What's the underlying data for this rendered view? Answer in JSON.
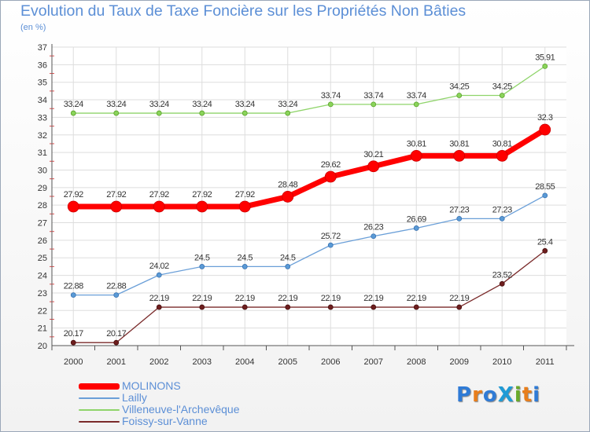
{
  "title": "Evolution du Taux de Taxe Foncière sur les Propriétés Non Bâties",
  "unit_label": "(en %)",
  "logo": {
    "text": "ProXiti",
    "colors": [
      "#2f7bd6",
      "#e87e1c",
      "#2f7bd6",
      "#1f9bd6",
      "#6aaa2a",
      "#e87e1c",
      "#2f7bd6"
    ]
  },
  "chart_data": {
    "type": "line",
    "title": "Evolution du Taux de Taxe Foncière sur les Propriétés Non Bâties",
    "ylabel": "(en %)",
    "x": [
      "2000",
      "2001",
      "2002",
      "2003",
      "2004",
      "2005",
      "2006",
      "2007",
      "2008",
      "2009",
      "2010",
      "2011"
    ],
    "ylim": [
      20,
      37
    ],
    "yticks": [
      "20",
      "21",
      "22",
      "23",
      "24",
      "25",
      "26",
      "27",
      "28",
      "29",
      "30",
      "31",
      "32",
      "33",
      "34",
      "35",
      "36",
      "37"
    ],
    "grid": true,
    "legend_position": "bottom-left",
    "series": [
      {
        "name": "MOLINONS",
        "color": "#ff0000",
        "values": [
          27.92,
          27.92,
          27.92,
          27.92,
          27.92,
          28.48,
          29.62,
          30.21,
          30.81,
          30.81,
          30.81,
          32.3
        ],
        "labels": [
          "27.92",
          "27.92",
          "27.92",
          "27.92",
          "27.92",
          "28.48",
          "29.62",
          "30.21",
          "30.81",
          "30.81",
          "30.81",
          "32.3"
        ]
      },
      {
        "name": "Lailly",
        "color": "#6a9fd8",
        "values": [
          22.88,
          22.88,
          24.02,
          24.5,
          24.5,
          24.5,
          25.72,
          26.23,
          26.69,
          27.23,
          27.23,
          28.55
        ],
        "labels": [
          "22.88",
          "22.88",
          "24.02",
          "24.5",
          "24.5",
          "24.5",
          "25.72",
          "26.23",
          "26.69",
          "27.23",
          "27.23",
          "28.55"
        ]
      },
      {
        "name": "Villeneuve-l'Archevêque",
        "color": "#8fd46a",
        "values": [
          33.24,
          33.24,
          33.24,
          33.24,
          33.24,
          33.24,
          33.74,
          33.74,
          33.74,
          34.25,
          34.25,
          35.91
        ],
        "labels": [
          "33.24",
          "33.24",
          "33.24",
          "33.24",
          "33.24",
          "33.24",
          "33.74",
          "33.74",
          "33.74",
          "34.25",
          "34.25",
          "35.91"
        ]
      },
      {
        "name": "Foissy-sur-Vanne",
        "color": "#7a2a2a",
        "values": [
          20.17,
          20.17,
          22.19,
          22.19,
          22.19,
          22.19,
          22.19,
          22.19,
          22.19,
          22.19,
          23.52,
          25.4
        ],
        "labels": [
          "20.17",
          "20.17",
          "22.19",
          "22.19",
          "22.19",
          "22.19",
          "22.19",
          "22.19",
          "22.19",
          "22.19",
          "23.52",
          "25.4"
        ]
      }
    ]
  }
}
